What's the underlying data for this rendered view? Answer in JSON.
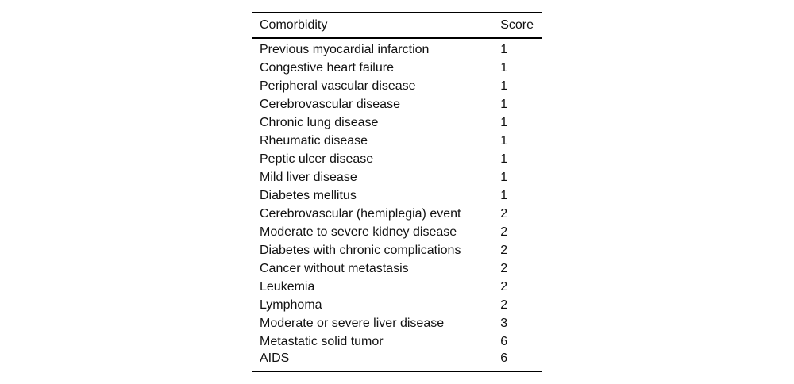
{
  "table": {
    "header": [
      "Comorbidity",
      "Score"
    ],
    "rows": [
      [
        "Previous myocardial infarction",
        1
      ],
      [
        "Congestive heart failure",
        1
      ],
      [
        "Peripheral vascular disease",
        1
      ],
      [
        "Cerebrovascular disease",
        1
      ],
      [
        "Chronic lung disease",
        1
      ],
      [
        "Rheumatic disease",
        1
      ],
      [
        "Peptic ulcer disease",
        1
      ],
      [
        "Mild liver disease",
        1
      ],
      [
        "Diabetes mellitus",
        1
      ],
      [
        "Cerebrovascular (hemiplegia) event",
        2
      ],
      [
        "Moderate to severe kidney disease",
        2
      ],
      [
        "Diabetes with chronic complications",
        2
      ],
      [
        "Cancer without metastasis",
        2
      ],
      [
        "Leukemia",
        2
      ],
      [
        "Lymphoma",
        2
      ],
      [
        "Moderate or severe liver disease",
        3
      ],
      [
        "Metastatic solid tumor",
        6
      ],
      [
        "AIDS",
        6
      ]
    ]
  }
}
